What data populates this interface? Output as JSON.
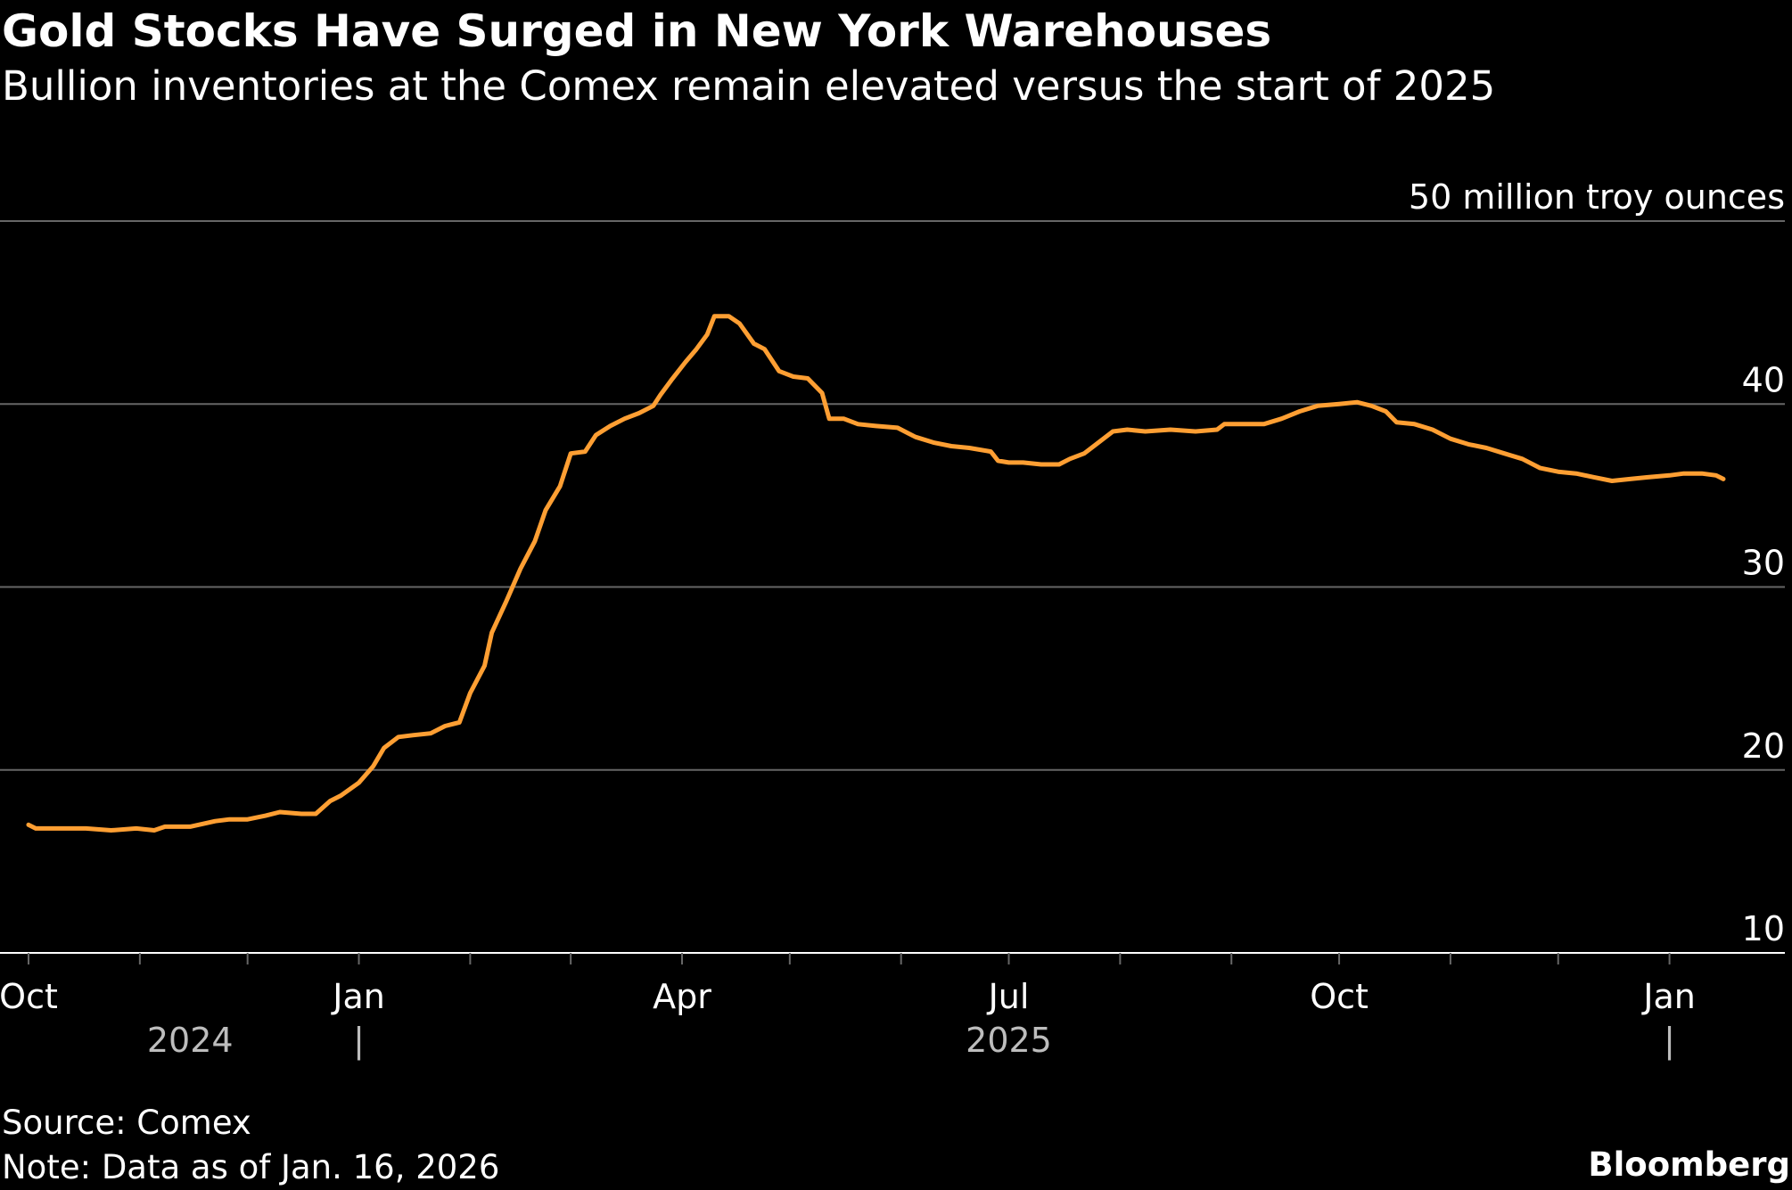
{
  "header": {
    "title": "Gold Stocks Have Surged in New York Warehouses",
    "subtitle": "Bullion inventories at the Comex remain elevated versus the start of 2025"
  },
  "footer": {
    "source": "Source: Comex",
    "note": "Note: Data as of Jan. 16, 2026",
    "brand": "Bloomberg"
  },
  "colors": {
    "background": "#000000",
    "line": "#ff9f33",
    "grid": "#666666",
    "text": "#ffffff",
    "year_text": "#bdbdbd"
  },
  "chart_data": {
    "type": "line",
    "title": "Gold Stocks Have Surged in New York Warehouses",
    "subtitle": "Bullion inventories at the Comex remain elevated versus the start of 2025",
    "unit_label": "50 million troy ounces",
    "ylim": [
      10,
      50
    ],
    "yticks": [
      10,
      20,
      30,
      40,
      50
    ],
    "ytick_labels": [
      "10",
      "20",
      "30",
      "40",
      "50"
    ],
    "y_axis_position": "right",
    "grid": true,
    "x_axis": {
      "start": "2024-10-01",
      "end": "2026-01-16",
      "month_ticks": [
        "2024-10-01",
        "2024-11-01",
        "2024-12-01",
        "2025-01-01",
        "2025-02-01",
        "2025-03-01",
        "2025-04-01",
        "2025-05-01",
        "2025-06-01",
        "2025-07-01",
        "2025-08-01",
        "2025-09-01",
        "2025-10-01",
        "2025-11-01",
        "2025-12-01",
        "2026-01-01"
      ],
      "labels": [
        {
          "date": "2024-10-01",
          "text": "Oct"
        },
        {
          "date": "2025-01-01",
          "text": "Jan"
        },
        {
          "date": "2025-04-01",
          "text": "Apr"
        },
        {
          "date": "2025-07-01",
          "text": "Jul"
        },
        {
          "date": "2025-10-01",
          "text": "Oct"
        },
        {
          "date": "2026-01-01",
          "text": "Jan"
        }
      ],
      "years": [
        {
          "date": "2024-11-15",
          "text": "2024"
        },
        {
          "date": "2025-07-01",
          "text": "2025"
        }
      ],
      "year_dividers": [
        "2025-01-01",
        "2026-01-01"
      ],
      "year_divider_text": "|"
    },
    "series": [
      {
        "color": "#ff9f33",
        "points": [
          [
            "2024-10-01",
            17.0
          ],
          [
            "2024-10-03",
            16.8
          ],
          [
            "2024-10-10",
            16.8
          ],
          [
            "2024-10-17",
            16.8
          ],
          [
            "2024-10-24",
            16.7
          ],
          [
            "2024-10-31",
            16.8
          ],
          [
            "2024-11-05",
            16.7
          ],
          [
            "2024-11-08",
            16.9
          ],
          [
            "2024-11-15",
            16.9
          ],
          [
            "2024-11-22",
            17.2
          ],
          [
            "2024-11-26",
            17.3
          ],
          [
            "2024-12-01",
            17.3
          ],
          [
            "2024-12-06",
            17.5
          ],
          [
            "2024-12-10",
            17.7
          ],
          [
            "2024-12-16",
            17.6
          ],
          [
            "2024-12-20",
            17.6
          ],
          [
            "2024-12-24",
            18.3
          ],
          [
            "2024-12-27",
            18.6
          ],
          [
            "2025-01-01",
            19.3
          ],
          [
            "2025-01-05",
            20.2
          ],
          [
            "2025-01-08",
            21.2
          ],
          [
            "2025-01-12",
            21.8
          ],
          [
            "2025-01-16",
            21.9
          ],
          [
            "2025-01-21",
            22.0
          ],
          [
            "2025-01-25",
            22.4
          ],
          [
            "2025-01-29",
            22.6
          ],
          [
            "2025-02-01",
            24.2
          ],
          [
            "2025-02-05",
            25.7
          ],
          [
            "2025-02-07",
            27.5
          ],
          [
            "2025-02-11",
            29.2
          ],
          [
            "2025-02-15",
            31.0
          ],
          [
            "2025-02-19",
            32.5
          ],
          [
            "2025-02-22",
            34.2
          ],
          [
            "2025-02-26",
            35.5
          ],
          [
            "2025-03-01",
            37.3
          ],
          [
            "2025-03-05",
            37.4
          ],
          [
            "2025-03-08",
            38.3
          ],
          [
            "2025-03-12",
            38.8
          ],
          [
            "2025-03-16",
            39.2
          ],
          [
            "2025-03-20",
            39.5
          ],
          [
            "2025-03-24",
            39.9
          ],
          [
            "2025-03-26",
            40.5
          ],
          [
            "2025-03-29",
            41.3
          ],
          [
            "2025-04-02",
            42.3
          ],
          [
            "2025-04-05",
            43.0
          ],
          [
            "2025-04-08",
            43.8
          ],
          [
            "2025-04-10",
            44.8
          ],
          [
            "2025-04-14",
            44.8
          ],
          [
            "2025-04-17",
            44.4
          ],
          [
            "2025-04-21",
            43.3
          ],
          [
            "2025-04-24",
            43.0
          ],
          [
            "2025-04-28",
            41.8
          ],
          [
            "2025-05-02",
            41.5
          ],
          [
            "2025-05-06",
            41.4
          ],
          [
            "2025-05-10",
            40.6
          ],
          [
            "2025-05-12",
            39.2
          ],
          [
            "2025-05-16",
            39.2
          ],
          [
            "2025-05-20",
            38.9
          ],
          [
            "2025-05-25",
            38.8
          ],
          [
            "2025-05-31",
            38.7
          ],
          [
            "2025-06-05",
            38.2
          ],
          [
            "2025-06-10",
            37.9
          ],
          [
            "2025-06-15",
            37.7
          ],
          [
            "2025-06-20",
            37.6
          ],
          [
            "2025-06-26",
            37.4
          ],
          [
            "2025-06-28",
            36.9
          ],
          [
            "2025-07-01",
            36.8
          ],
          [
            "2025-07-05",
            36.8
          ],
          [
            "2025-07-10",
            36.7
          ],
          [
            "2025-07-15",
            36.7
          ],
          [
            "2025-07-18",
            37.0
          ],
          [
            "2025-07-22",
            37.3
          ],
          [
            "2025-07-26",
            37.9
          ],
          [
            "2025-07-30",
            38.5
          ],
          [
            "2025-08-03",
            38.6
          ],
          [
            "2025-08-08",
            38.5
          ],
          [
            "2025-08-15",
            38.6
          ],
          [
            "2025-08-22",
            38.5
          ],
          [
            "2025-08-28",
            38.6
          ],
          [
            "2025-08-30",
            38.9
          ],
          [
            "2025-09-05",
            38.9
          ],
          [
            "2025-09-10",
            38.9
          ],
          [
            "2025-09-15",
            39.2
          ],
          [
            "2025-09-20",
            39.6
          ],
          [
            "2025-09-25",
            39.9
          ],
          [
            "2025-10-01",
            40.0
          ],
          [
            "2025-10-06",
            40.1
          ],
          [
            "2025-10-10",
            39.9
          ],
          [
            "2025-10-14",
            39.6
          ],
          [
            "2025-10-17",
            39.0
          ],
          [
            "2025-10-22",
            38.9
          ],
          [
            "2025-10-27",
            38.6
          ],
          [
            "2025-11-01",
            38.1
          ],
          [
            "2025-11-06",
            37.8
          ],
          [
            "2025-11-11",
            37.6
          ],
          [
            "2025-11-16",
            37.3
          ],
          [
            "2025-11-21",
            37.0
          ],
          [
            "2025-11-26",
            36.5
          ],
          [
            "2025-12-01",
            36.3
          ],
          [
            "2025-12-06",
            36.2
          ],
          [
            "2025-12-11",
            36.0
          ],
          [
            "2025-12-16",
            35.8
          ],
          [
            "2025-12-21",
            35.9
          ],
          [
            "2025-12-26",
            36.0
          ],
          [
            "2026-01-01",
            36.1
          ],
          [
            "2026-01-05",
            36.2
          ],
          [
            "2026-01-10",
            36.2
          ],
          [
            "2026-01-14",
            36.1
          ],
          [
            "2026-01-16",
            35.9
          ]
        ]
      }
    ]
  }
}
